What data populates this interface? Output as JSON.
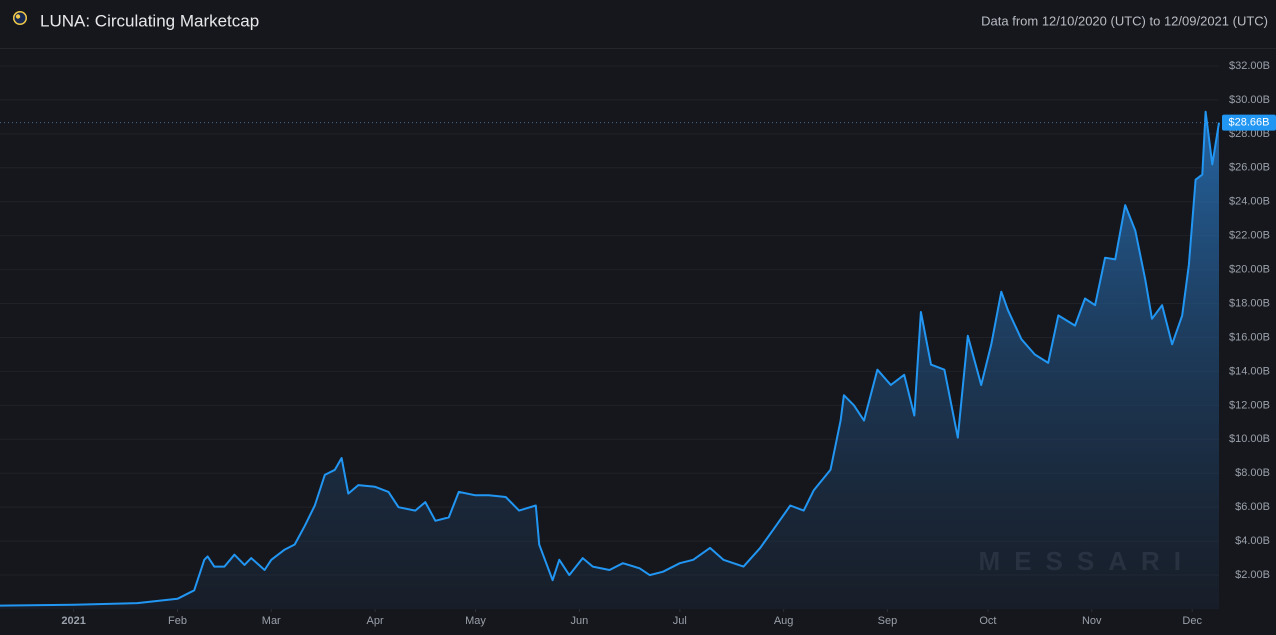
{
  "chart_data": {
    "type": "area",
    "title": "LUNA: Circulating Marketcap",
    "subtitle": "Data from 12/10/2020 (UTC) to 12/09/2021 (UTC)",
    "watermark": "MESSARI",
    "x": [
      "2020-12-10",
      "2021-01-01",
      "2021-01-20",
      "2021-02-01",
      "2021-02-06",
      "2021-02-09",
      "2021-02-10",
      "2021-02-12",
      "2021-02-15",
      "2021-02-18",
      "2021-02-21",
      "2021-02-23",
      "2021-02-27",
      "2021-03-01",
      "2021-03-05",
      "2021-03-08",
      "2021-03-11",
      "2021-03-14",
      "2021-03-17",
      "2021-03-20",
      "2021-03-22",
      "2021-03-24",
      "2021-03-27",
      "2021-04-01",
      "2021-04-05",
      "2021-04-08",
      "2021-04-13",
      "2021-04-16",
      "2021-04-19",
      "2021-04-23",
      "2021-04-26",
      "2021-05-01",
      "2021-05-05",
      "2021-05-10",
      "2021-05-14",
      "2021-05-19",
      "2021-05-20",
      "2021-05-24",
      "2021-05-26",
      "2021-05-29",
      "2021-06-02",
      "2021-06-05",
      "2021-06-10",
      "2021-06-14",
      "2021-06-19",
      "2021-06-22",
      "2021-06-26",
      "2021-07-01",
      "2021-07-05",
      "2021-07-10",
      "2021-07-14",
      "2021-07-20",
      "2021-07-25",
      "2021-07-29",
      "2021-08-03",
      "2021-08-07",
      "2021-08-10",
      "2021-08-15",
      "2021-08-18",
      "2021-08-19",
      "2021-08-22",
      "2021-08-25",
      "2021-08-29",
      "2021-09-02",
      "2021-09-06",
      "2021-09-09",
      "2021-09-11",
      "2021-09-14",
      "2021-09-18",
      "2021-09-22",
      "2021-09-25",
      "2021-09-29",
      "2021-10-02",
      "2021-10-05",
      "2021-10-07",
      "2021-10-11",
      "2021-10-15",
      "2021-10-19",
      "2021-10-22",
      "2021-10-27",
      "2021-10-30",
      "2021-11-02",
      "2021-11-05",
      "2021-11-08",
      "2021-11-11",
      "2021-11-14",
      "2021-11-17",
      "2021-11-19",
      "2021-11-22",
      "2021-11-25",
      "2021-11-28",
      "2021-11-30",
      "2021-12-02",
      "2021-12-04",
      "2021-12-05",
      "2021-12-07",
      "2021-12-09"
    ],
    "series": [
      {
        "name": "LUNA",
        "color": "#2196f3",
        "values": [
          0.2,
          0.25,
          0.35,
          0.6,
          1.1,
          2.9,
          3.1,
          2.5,
          2.5,
          3.2,
          2.6,
          3.0,
          2.3,
          2.9,
          3.5,
          3.8,
          4.9,
          6.1,
          7.9,
          8.2,
          8.9,
          6.8,
          7.3,
          7.2,
          6.9,
          6.0,
          5.8,
          6.3,
          5.2,
          5.4,
          6.9,
          6.7,
          6.7,
          6.6,
          5.8,
          6.1,
          3.8,
          1.7,
          2.9,
          2.0,
          3.0,
          2.5,
          2.3,
          2.7,
          2.4,
          2.0,
          2.2,
          2.7,
          2.9,
          3.6,
          2.9,
          2.5,
          3.6,
          4.7,
          6.1,
          5.8,
          7.0,
          8.2,
          11.1,
          12.6,
          12.0,
          11.1,
          14.1,
          13.2,
          13.8,
          11.4,
          17.5,
          14.4,
          14.1,
          10.1,
          16.1,
          13.2,
          15.6,
          18.7,
          17.6,
          15.9,
          15.0,
          14.5,
          17.3,
          16.7,
          18.3,
          17.9,
          20.7,
          20.6,
          23.8,
          22.3,
          19.4,
          17.1,
          17.9,
          15.6,
          17.3,
          20.3,
          25.3,
          25.6,
          29.3,
          26.2,
          28.66
        ]
      }
    ],
    "current_value": {
      "value": 28.66,
      "label": "$28.66B"
    },
    "xlim": [
      "2020-12-10",
      "2021-12-09"
    ],
    "xticks": [
      {
        "value": "2021-01-01",
        "label": "2021"
      },
      {
        "value": "2021-02-01",
        "label": "Feb"
      },
      {
        "value": "2021-03-01",
        "label": "Mar"
      },
      {
        "value": "2021-04-01",
        "label": "Apr"
      },
      {
        "value": "2021-05-01",
        "label": "May"
      },
      {
        "value": "2021-06-01",
        "label": "Jun"
      },
      {
        "value": "2021-07-01",
        "label": "Jul"
      },
      {
        "value": "2021-08-01",
        "label": "Aug"
      },
      {
        "value": "2021-09-01",
        "label": "Sep"
      },
      {
        "value": "2021-10-01",
        "label": "Oct"
      },
      {
        "value": "2021-11-01",
        "label": "Nov"
      },
      {
        "value": "2021-12-01",
        "label": "Dec"
      }
    ],
    "ylim": [
      0,
      33
    ],
    "yticks": [
      {
        "value": 2,
        "label": "$2.00B"
      },
      {
        "value": 4,
        "label": "$4.00B"
      },
      {
        "value": 6,
        "label": "$6.00B"
      },
      {
        "value": 8,
        "label": "$8.00B"
      },
      {
        "value": 10,
        "label": "$10.00B"
      },
      {
        "value": 12,
        "label": "$12.00B"
      },
      {
        "value": 14,
        "label": "$14.00B"
      },
      {
        "value": 16,
        "label": "$16.00B"
      },
      {
        "value": 18,
        "label": "$18.00B"
      },
      {
        "value": 20,
        "label": "$20.00B"
      },
      {
        "value": 22,
        "label": "$22.00B"
      },
      {
        "value": 24,
        "label": "$24.00B"
      },
      {
        "value": 26,
        "label": "$26.00B"
      },
      {
        "value": 28,
        "label": "$28.00B"
      },
      {
        "value": 30,
        "label": "$30.00B"
      },
      {
        "value": 32,
        "label": "$32.00B"
      }
    ],
    "grid": true
  }
}
